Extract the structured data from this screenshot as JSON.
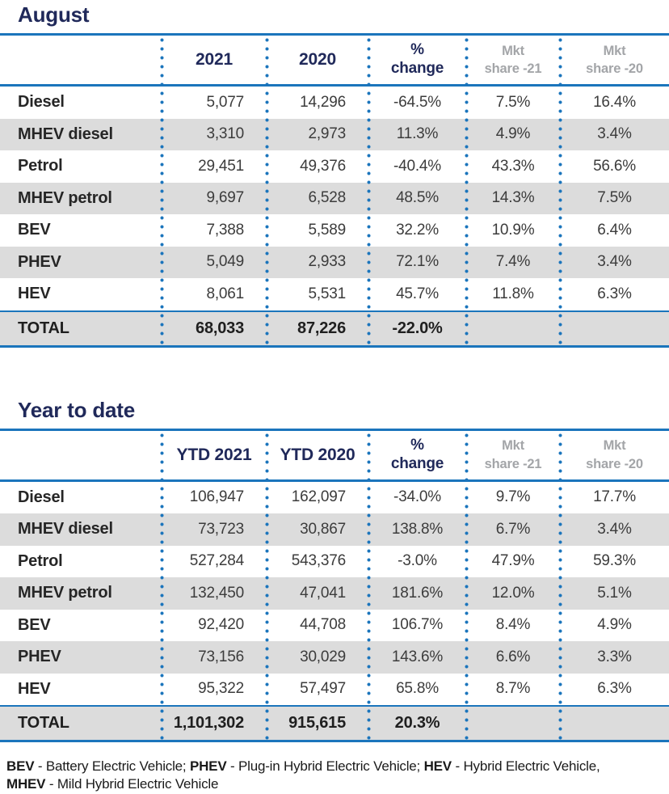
{
  "colors": {
    "accent_blue": "#1B75BC",
    "navy_heading": "#20295A",
    "mkt_header_gray": "#A3A5A8",
    "alt_row_gray": "#DCDCDC"
  },
  "tables": [
    {
      "title": "August",
      "headers": [
        "2021",
        "2020",
        "%\nchange",
        "Mkt\nshare -21",
        "Mkt\nshare -20"
      ],
      "rows": [
        {
          "label": "Diesel",
          "values": [
            "5,077",
            "14,296",
            "-64.5%",
            "7.5%",
            "16.4%"
          ]
        },
        {
          "label": "MHEV diesel",
          "values": [
            "3,310",
            "2,973",
            "11.3%",
            "4.9%",
            "3.4%"
          ]
        },
        {
          "label": "Petrol",
          "values": [
            "29,451",
            "49,376",
            "-40.4%",
            "43.3%",
            "56.6%"
          ]
        },
        {
          "label": "MHEV petrol",
          "values": [
            "9,697",
            "6,528",
            "48.5%",
            "14.3%",
            "7.5%"
          ]
        },
        {
          "label": "BEV",
          "values": [
            "7,388",
            "5,589",
            "32.2%",
            "10.9%",
            "6.4%"
          ]
        },
        {
          "label": "PHEV",
          "values": [
            "5,049",
            "2,933",
            "72.1%",
            "7.4%",
            "3.4%"
          ]
        },
        {
          "label": "HEV",
          "values": [
            "8,061",
            "5,531",
            "45.7%",
            "11.8%",
            "6.3%"
          ]
        }
      ],
      "total": {
        "label": "TOTAL",
        "values": [
          "68,033",
          "87,226",
          "-22.0%",
          "",
          ""
        ]
      }
    },
    {
      "title": "Year to date",
      "headers": [
        "YTD 2021",
        "YTD 2020",
        "%\nchange",
        "Mkt\nshare -21",
        "Mkt\nshare -20"
      ],
      "rows": [
        {
          "label": "Diesel",
          "values": [
            "106,947",
            "162,097",
            "-34.0%",
            "9.7%",
            "17.7%"
          ]
        },
        {
          "label": "MHEV diesel",
          "values": [
            "73,723",
            "30,867",
            "138.8%",
            "6.7%",
            "3.4%"
          ]
        },
        {
          "label": "Petrol",
          "values": [
            "527,284",
            "543,376",
            "-3.0%",
            "47.9%",
            "59.3%"
          ]
        },
        {
          "label": "MHEV petrol",
          "values": [
            "132,450",
            "47,041",
            "181.6%",
            "12.0%",
            "5.1%"
          ]
        },
        {
          "label": "BEV",
          "values": [
            "92,420",
            "44,708",
            "106.7%",
            "8.4%",
            "4.9%"
          ]
        },
        {
          "label": "PHEV",
          "values": [
            "73,156",
            "30,029",
            "143.6%",
            "6.6%",
            "3.3%"
          ]
        },
        {
          "label": "HEV",
          "values": [
            "95,322",
            "57,497",
            "65.8%",
            "8.7%",
            "6.3%"
          ]
        }
      ],
      "total": {
        "label": "TOTAL",
        "values": [
          "1,101,302",
          "915,615",
          "20.3%",
          "",
          ""
        ]
      }
    }
  ],
  "footnote": [
    {
      "term": "BEV",
      "rest": " - Battery Electric Vehicle; "
    },
    {
      "term": "PHEV",
      "rest": " - Plug-in Hybrid Electric Vehicle; "
    },
    {
      "term": "HEV",
      "rest": " - Hybrid Electric Vehicle,"
    },
    {
      "term": "MHEV",
      "rest": " - Mild Hybrid Electric Vehicle"
    }
  ],
  "chart_data": [
    {
      "type": "table",
      "title": "August",
      "columns": [
        "",
        "2021",
        "2020",
        "% change",
        "Mkt share -21",
        "Mkt share -20"
      ],
      "rows": [
        [
          "Diesel",
          "5,077",
          "14,296",
          "-64.5%",
          "7.5%",
          "16.4%"
        ],
        [
          "MHEV diesel",
          "3,310",
          "2,973",
          "11.3%",
          "4.9%",
          "3.4%"
        ],
        [
          "Petrol",
          "29,451",
          "49,376",
          "-40.4%",
          "43.3%",
          "56.6%"
        ],
        [
          "MHEV petrol",
          "9,697",
          "6,528",
          "48.5%",
          "14.3%",
          "7.5%"
        ],
        [
          "BEV",
          "7,388",
          "5,589",
          "32.2%",
          "10.9%",
          "6.4%"
        ],
        [
          "PHEV",
          "5,049",
          "2,933",
          "72.1%",
          "7.4%",
          "3.4%"
        ],
        [
          "HEV",
          "8,061",
          "5,531",
          "45.7%",
          "11.8%",
          "6.3%"
        ],
        [
          "TOTAL",
          "68,033",
          "87,226",
          "-22.0%",
          "",
          ""
        ]
      ]
    },
    {
      "type": "table",
      "title": "Year to date",
      "columns": [
        "",
        "YTD 2021",
        "YTD 2020",
        "% change",
        "Mkt share -21",
        "Mkt share -20"
      ],
      "rows": [
        [
          "Diesel",
          "106,947",
          "162,097",
          "-34.0%",
          "9.7%",
          "17.7%"
        ],
        [
          "MHEV diesel",
          "73,723",
          "30,867",
          "138.8%",
          "6.7%",
          "3.4%"
        ],
        [
          "Petrol",
          "527,284",
          "543,376",
          "-3.0%",
          "47.9%",
          "59.3%"
        ],
        [
          "MHEV petrol",
          "132,450",
          "47,041",
          "181.6%",
          "12.0%",
          "5.1%"
        ],
        [
          "BEV",
          "92,420",
          "44,708",
          "106.7%",
          "8.4%",
          "4.9%"
        ],
        [
          "PHEV",
          "73,156",
          "30,029",
          "143.6%",
          "6.6%",
          "3.3%"
        ],
        [
          "HEV",
          "95,322",
          "57,497",
          "65.8%",
          "8.7%",
          "6.3%"
        ],
        [
          "TOTAL",
          "1,101,302",
          "915,615",
          "20.3%",
          "",
          ""
        ]
      ]
    }
  ]
}
